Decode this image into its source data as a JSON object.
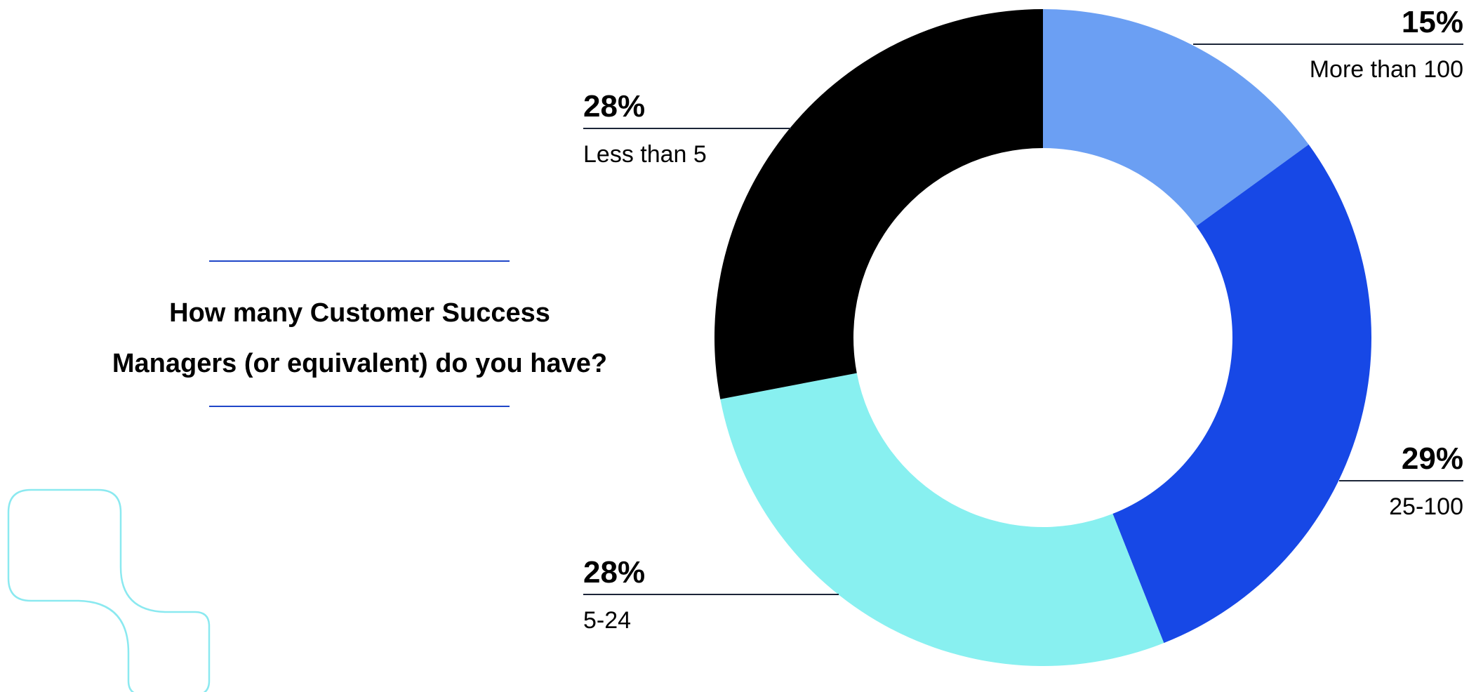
{
  "question": {
    "line1": "How many Customer Success",
    "line2": "Managers (or equivalent) do you have?"
  },
  "colors": {
    "accent_rule": "#1f46c8",
    "leader": "#1c2538",
    "decor_outline": "#8be9f0"
  },
  "chart_data": {
    "type": "pie",
    "subtype": "donut",
    "title": "How many Customer Success Managers (or equivalent) do you have?",
    "slices": [
      {
        "label": "More than 100",
        "value": 15,
        "value_label": "15%",
        "color": "#6b9ff3"
      },
      {
        "label": "25-100",
        "value": 29,
        "value_label": "29%",
        "color": "#1748e6"
      },
      {
        "label": "5-24",
        "value": 28,
        "value_label": "28%",
        "color": "#88f0f0"
      },
      {
        "label": "Less than 5",
        "value": 28,
        "value_label": "28%",
        "color": "#000000"
      }
    ],
    "start": "12 o'clock",
    "direction": "clockwise",
    "legend": "none (callout labels beside slices)"
  }
}
